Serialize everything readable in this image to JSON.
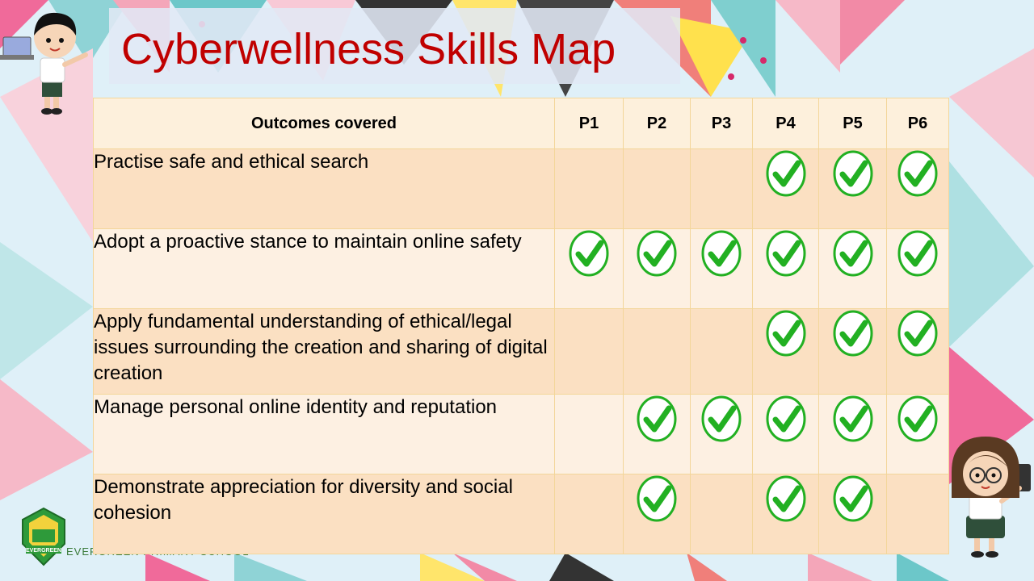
{
  "slide": {
    "title": "Cyberwellness Skills Map",
    "school_name": "EVERGREEN PRIMARY SCHOOL",
    "logo_text": "EVERGREEN",
    "colors": {
      "title": "#c00000",
      "check": "#22b022",
      "table_border": "#f3d69a"
    }
  },
  "table": {
    "header": {
      "outcome": "Outcomes covered",
      "levels": [
        "P1",
        "P2",
        "P3",
        "P4",
        "P5",
        "P6"
      ]
    },
    "rows": [
      {
        "outcome": "Practise safe and ethical search",
        "checks": [
          false,
          false,
          false,
          true,
          true,
          true
        ]
      },
      {
        "outcome": "Adopt a proactive stance to maintain online safety",
        "checks": [
          true,
          true,
          true,
          true,
          true,
          true
        ]
      },
      {
        "outcome": "Apply fundamental understanding of ethical/legal issues surrounding the creation and sharing of digital creation",
        "checks": [
          false,
          false,
          false,
          true,
          true,
          true
        ]
      },
      {
        "outcome": "Manage personal online identity and reputation",
        "checks": [
          false,
          true,
          true,
          true,
          true,
          true
        ]
      },
      {
        "outcome": "Demonstrate appreciation for diversity and social cohesion",
        "checks": [
          false,
          true,
          false,
          true,
          true,
          false
        ]
      }
    ]
  },
  "icons": {
    "check": "check-circle-icon",
    "boy": "boy-with-laptop-icon",
    "girl": "girl-with-tablet-icon",
    "logo": "school-crest-icon"
  }
}
